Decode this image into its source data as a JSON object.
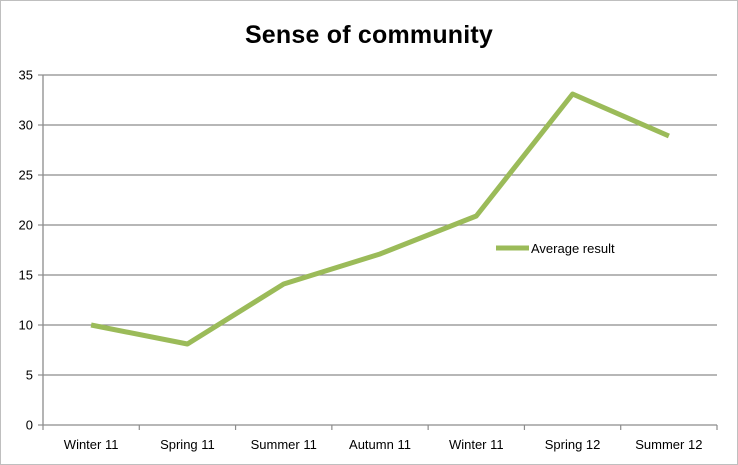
{
  "chart_data": {
    "type": "line",
    "title": "Sense of community",
    "categories": [
      "Winter 11",
      "Spring 11",
      "Summer 11",
      "Autumn 11",
      "Winter 11",
      "Spring 12",
      "Summer 12"
    ],
    "series": [
      {
        "name": "Average result",
        "values": [
          10,
          8.1,
          14.1,
          17.1,
          20.9,
          33.1,
          28.9
        ],
        "color": "#9bbb59"
      }
    ],
    "xlabel": "",
    "ylabel": "",
    "ylim": [
      0,
      35
    ],
    "yticks": [
      "0",
      "5",
      "10",
      "15",
      "20",
      "25",
      "30",
      "35"
    ],
    "grid": true,
    "legend_position": "right, inside plot"
  }
}
